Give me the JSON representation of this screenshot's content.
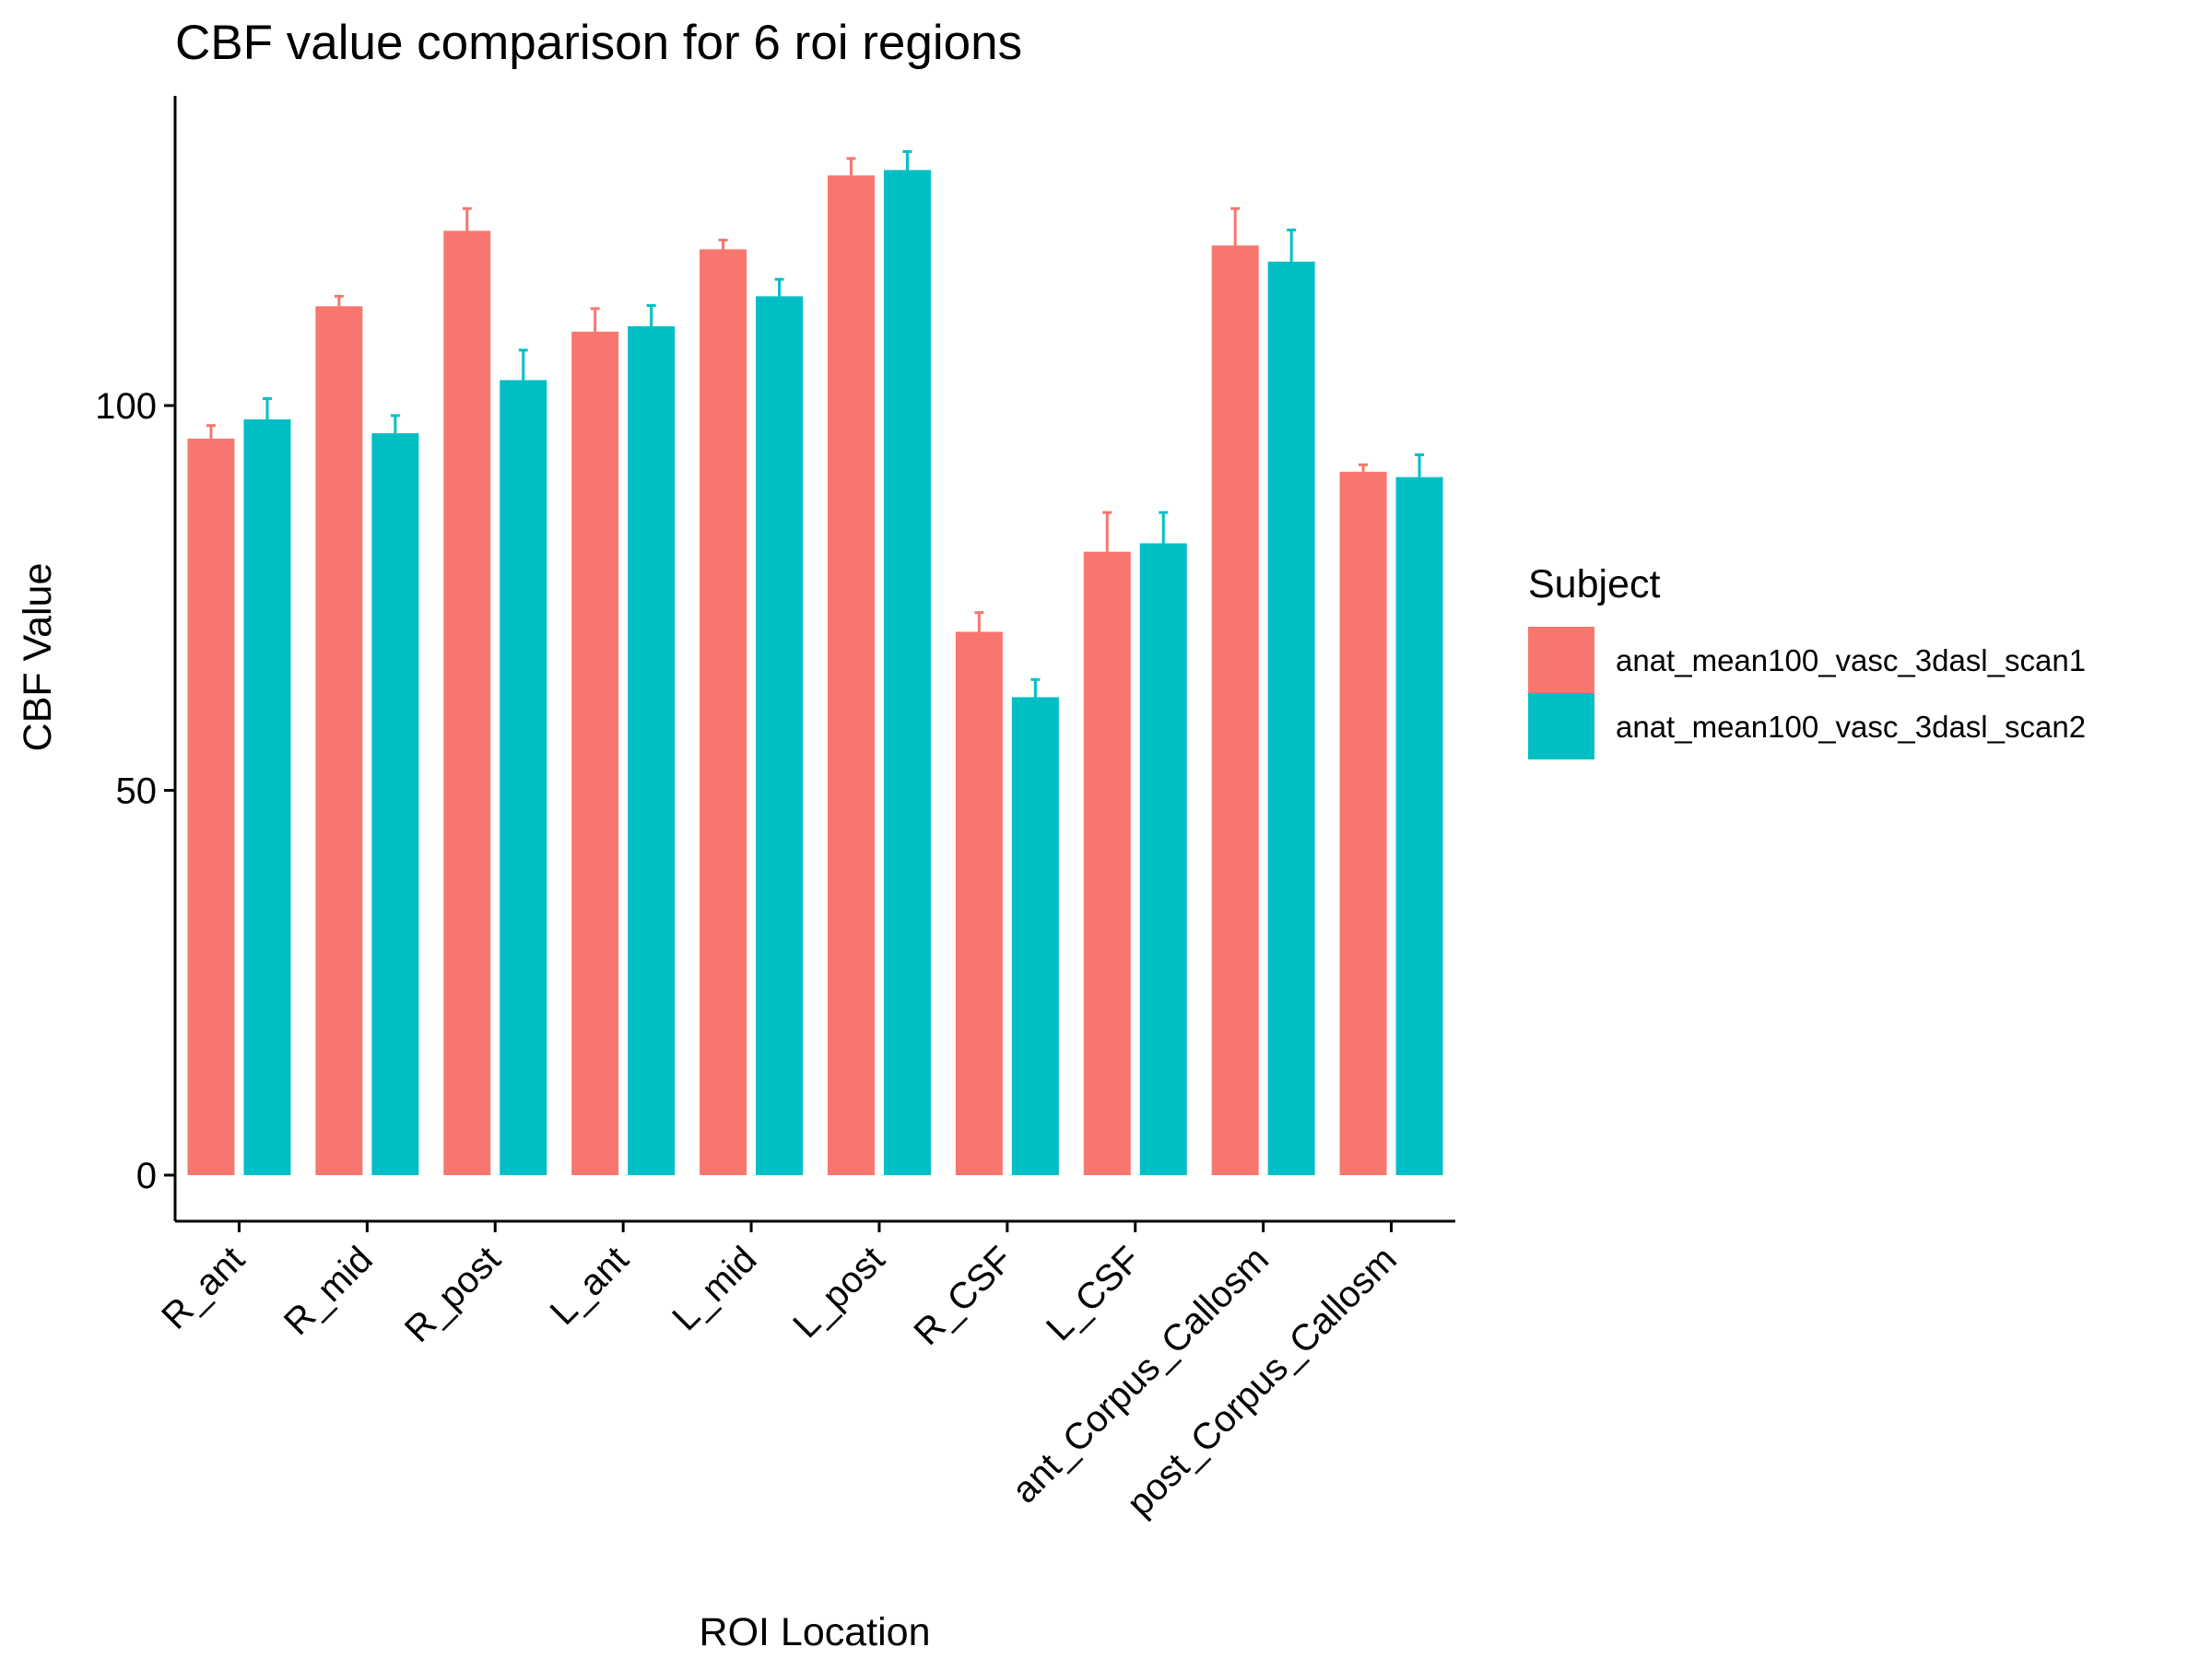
{
  "chart_data": {
    "type": "bar",
    "title": "CBF value comparison for 6 roi regions",
    "xlabel": "ROI Location",
    "ylabel": "CBF Value",
    "ylim": [
      -6.3,
      140.5
    ],
    "yticks": [
      0,
      50,
      100
    ],
    "grid": false,
    "legend_position": "right",
    "legend": {
      "title": "Subject"
    },
    "categories": [
      "R_ant",
      "R_mid",
      "R_post",
      "L_ant",
      "L_mid",
      "L_post",
      "R_CSF",
      "L_CSF",
      "ant_Corpus_Callosm",
      "post_Corpus_Callosm"
    ],
    "series": [
      {
        "name": "anat_mean100_vasc_3dasl_scan1",
        "color": "#F8766D",
        "values": [
          95.7,
          112.9,
          122.7,
          109.6,
          120.3,
          129.9,
          70.6,
          81.0,
          120.8,
          91.4
        ],
        "error_upper": [
          97.4,
          114.2,
          125.6,
          112.6,
          121.5,
          132.1,
          73.1,
          86.1,
          125.6,
          92.3
        ]
      },
      {
        "name": "anat_mean100_vasc_3dasl_scan2",
        "color": "#00BFC4",
        "values": [
          98.2,
          96.4,
          103.3,
          110.3,
          114.2,
          130.6,
          62.1,
          82.1,
          118.7,
          90.7
        ],
        "error_upper": [
          100.9,
          98.7,
          107.2,
          113.0,
          116.4,
          133.0,
          64.4,
          86.1,
          122.8,
          93.6
        ]
      }
    ]
  }
}
